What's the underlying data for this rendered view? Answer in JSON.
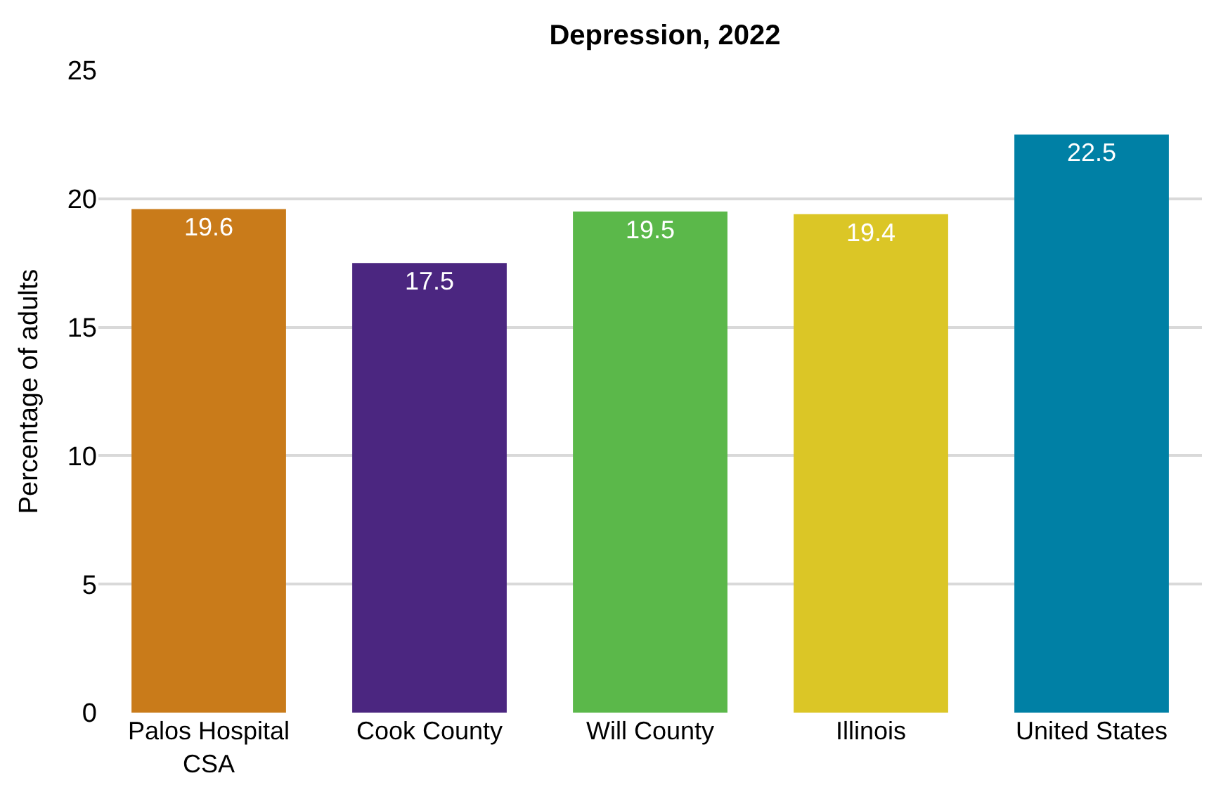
{
  "chart_data": {
    "type": "bar",
    "title": "Depression, 2022",
    "ylabel": "Percentage of adults",
    "categories": [
      "Palos Hospital CSA",
      "Cook County",
      "Will County",
      "Illinois",
      "United States"
    ],
    "values": [
      19.6,
      17.5,
      19.5,
      19.4,
      22.5
    ],
    "colors": [
      "#c97b1a",
      "#4b2680",
      "#5bb84a",
      "#dbc626",
      "#0080a5"
    ],
    "ylim": [
      0,
      25
    ],
    "yticks": [
      0,
      5,
      10,
      15,
      20,
      25
    ],
    "grid": "y",
    "data_labels": true,
    "legend": false
  }
}
